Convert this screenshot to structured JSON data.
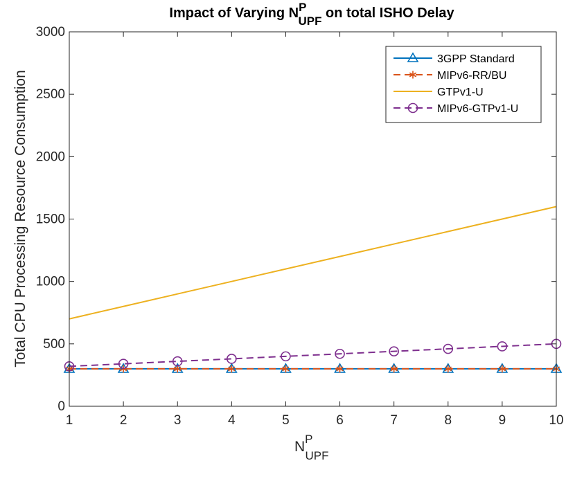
{
  "chart_data": {
    "type": "line",
    "title": {
      "prefix": "Impact of Varying N",
      "sup": "P",
      "sub": "UPF",
      "suffix": " on total ISHO Delay"
    },
    "xlabel": {
      "base": "N",
      "sup": "P",
      "sub": "UPF"
    },
    "ylabel": "Total CPU Processing Resource Consumption",
    "x": [
      1,
      2,
      3,
      4,
      5,
      6,
      7,
      8,
      9,
      10
    ],
    "xlim": [
      1,
      10
    ],
    "ylim": [
      0,
      3000
    ],
    "xticks": [
      1,
      2,
      3,
      4,
      5,
      6,
      7,
      8,
      9,
      10
    ],
    "yticks": [
      0,
      500,
      1000,
      1500,
      2000,
      2500,
      3000
    ],
    "grid": false,
    "legend_position": "top-right",
    "series": [
      {
        "name": "3GPP Standard",
        "values": [
          300,
          300,
          300,
          300,
          300,
          300,
          300,
          300,
          300,
          300
        ],
        "color": "#0072BD",
        "dash": "solid",
        "marker": "triangle"
      },
      {
        "name": "MIPv6-RR/BU",
        "values": [
          300,
          300,
          300,
          300,
          300,
          300,
          300,
          300,
          300,
          300
        ],
        "color": "#D95319",
        "dash": "dashed",
        "marker": "asterisk"
      },
      {
        "name": "GTPv1-U",
        "values": [
          700,
          800,
          900,
          1000,
          1100,
          1200,
          1300,
          1400,
          1500,
          1600
        ],
        "color": "#EDB120",
        "dash": "solid",
        "marker": "none"
      },
      {
        "name": "MIPv6-GTPv1-U",
        "values": [
          320,
          340,
          360,
          380,
          400,
          420,
          440,
          460,
          480,
          500
        ],
        "color": "#7E2F8E",
        "dash": "dashed",
        "marker": "circle"
      }
    ]
  }
}
